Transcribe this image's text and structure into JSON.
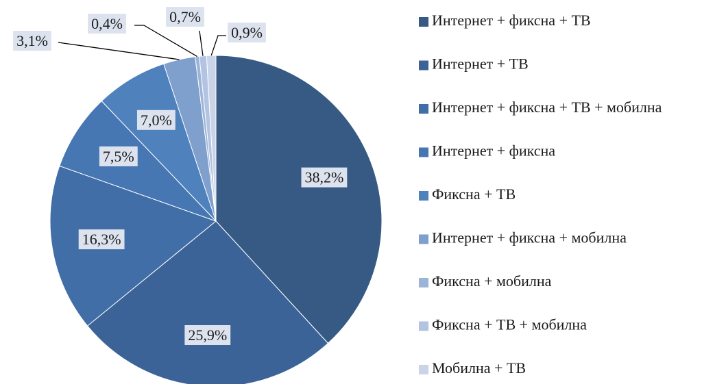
{
  "chart_data": {
    "type": "pie",
    "categories": [
      "Интернет + фиксна + ТВ",
      "Интернет + ТВ",
      "Интернет + фиксна + ТВ + мобилна",
      "Интернет + фиксна",
      "Фиксна + ТВ",
      "Интернет + фиксна + мобилна",
      "Фиксна + мобилна",
      "Фиксна + ТВ + мобилна",
      "Мобилна + ТВ"
    ],
    "values": [
      38.2,
      25.9,
      16.3,
      7.5,
      7.0,
      3.1,
      0.4,
      0.7,
      0.9
    ],
    "value_labels": [
      "38,2%",
      "25,9%",
      "16,3%",
      "7,5%",
      "7,0%",
      "3,1%",
      "0,4%",
      "0,7%",
      "0,9%"
    ],
    "colors": [
      "#375a84",
      "#3c6397",
      "#416ea6",
      "#4677b3",
      "#4f81bd",
      "#7f9fcc",
      "#9db4d9",
      "#b3c4e3",
      "#c9d4e9"
    ],
    "legend": "right"
  }
}
